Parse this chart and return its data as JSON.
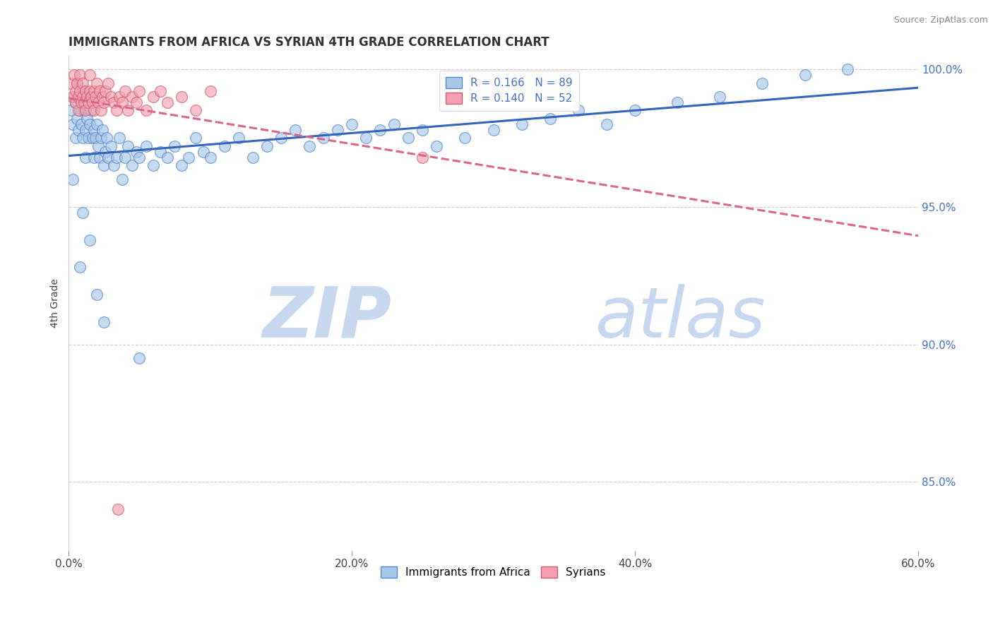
{
  "title": "IMMIGRANTS FROM AFRICA VS SYRIAN 4TH GRADE CORRELATION CHART",
  "source_text": "Source: ZipAtlas.com",
  "ylabel": "4th Grade",
  "xlim": [
    0.0,
    0.6
  ],
  "ylim": [
    0.825,
    1.005
  ],
  "xtick_labels": [
    "0.0%",
    "20.0%",
    "40.0%",
    "60.0%"
  ],
  "xtick_values": [
    0.0,
    0.2,
    0.4,
    0.6
  ],
  "ytick_labels_right": [
    "100.0%",
    "95.0%",
    "90.0%",
    "85.0%"
  ],
  "ytick_values_right": [
    1.0,
    0.95,
    0.9,
    0.85
  ],
  "R_africa": 0.166,
  "N_africa": 89,
  "R_syrian": 0.14,
  "N_syrian": 52,
  "color_africa": "#a8c8e8",
  "color_syrian": "#f4a0b0",
  "edge_africa": "#5588cc",
  "edge_syrian": "#cc6070",
  "trendline_africa": "#3366bb",
  "trendline_syrian": "#dd6688",
  "trendline_syrian_style": "--",
  "watermark_zip": "ZIP",
  "watermark_atlas": "atlas",
  "watermark_color_zip": "#c8d8ee",
  "watermark_color_atlas": "#c8d8ee",
  "legend_label_africa": "Immigrants from Africa",
  "legend_label_syrian": "Syrians",
  "africa_x": [
    0.002,
    0.003,
    0.004,
    0.005,
    0.005,
    0.006,
    0.006,
    0.007,
    0.008,
    0.008,
    0.009,
    0.01,
    0.01,
    0.011,
    0.012,
    0.012,
    0.013,
    0.014,
    0.015,
    0.015,
    0.016,
    0.017,
    0.018,
    0.018,
    0.019,
    0.02,
    0.021,
    0.022,
    0.023,
    0.024,
    0.025,
    0.026,
    0.027,
    0.028,
    0.03,
    0.032,
    0.034,
    0.036,
    0.038,
    0.04,
    0.042,
    0.045,
    0.048,
    0.05,
    0.055,
    0.06,
    0.065,
    0.07,
    0.075,
    0.08,
    0.085,
    0.09,
    0.095,
    0.1,
    0.11,
    0.12,
    0.13,
    0.14,
    0.15,
    0.16,
    0.17,
    0.18,
    0.19,
    0.2,
    0.21,
    0.22,
    0.23,
    0.24,
    0.25,
    0.26,
    0.28,
    0.3,
    0.32,
    0.34,
    0.36,
    0.38,
    0.4,
    0.43,
    0.46,
    0.49,
    0.52,
    0.55,
    0.003,
    0.01,
    0.015,
    0.008,
    0.02,
    0.025,
    0.05
  ],
  "africa_y": [
    0.985,
    0.98,
    0.99,
    0.988,
    0.975,
    0.982,
    0.995,
    0.978,
    0.985,
    0.99,
    0.98,
    0.975,
    0.992,
    0.985,
    0.978,
    0.968,
    0.982,
    0.975,
    0.98,
    0.99,
    0.985,
    0.975,
    0.978,
    0.968,
    0.975,
    0.98,
    0.972,
    0.968,
    0.975,
    0.978,
    0.965,
    0.97,
    0.975,
    0.968,
    0.972,
    0.965,
    0.968,
    0.975,
    0.96,
    0.968,
    0.972,
    0.965,
    0.97,
    0.968,
    0.972,
    0.965,
    0.97,
    0.968,
    0.972,
    0.965,
    0.968,
    0.975,
    0.97,
    0.968,
    0.972,
    0.975,
    0.968,
    0.972,
    0.975,
    0.978,
    0.972,
    0.975,
    0.978,
    0.98,
    0.975,
    0.978,
    0.98,
    0.975,
    0.978,
    0.972,
    0.975,
    0.978,
    0.98,
    0.982,
    0.985,
    0.98,
    0.985,
    0.988,
    0.99,
    0.995,
    0.998,
    1.0,
    0.96,
    0.948,
    0.938,
    0.928,
    0.918,
    0.908,
    0.895
  ],
  "syrian_x": [
    0.002,
    0.003,
    0.004,
    0.005,
    0.005,
    0.006,
    0.007,
    0.007,
    0.008,
    0.008,
    0.009,
    0.01,
    0.01,
    0.011,
    0.012,
    0.012,
    0.013,
    0.014,
    0.015,
    0.015,
    0.016,
    0.017,
    0.018,
    0.018,
    0.019,
    0.02,
    0.021,
    0.022,
    0.023,
    0.024,
    0.025,
    0.026,
    0.028,
    0.03,
    0.032,
    0.034,
    0.036,
    0.038,
    0.04,
    0.042,
    0.045,
    0.048,
    0.05,
    0.055,
    0.06,
    0.065,
    0.07,
    0.08,
    0.09,
    0.1,
    0.035,
    0.25
  ],
  "syrian_y": [
    0.995,
    0.99,
    0.998,
    0.992,
    0.988,
    0.995,
    0.99,
    0.985,
    0.992,
    0.998,
    0.988,
    0.99,
    0.995,
    0.988,
    0.992,
    0.985,
    0.99,
    0.988,
    0.992,
    0.998,
    0.99,
    0.988,
    0.992,
    0.985,
    0.99,
    0.995,
    0.988,
    0.992,
    0.985,
    0.99,
    0.988,
    0.992,
    0.995,
    0.99,
    0.988,
    0.985,
    0.99,
    0.988,
    0.992,
    0.985,
    0.99,
    0.988,
    0.992,
    0.985,
    0.99,
    0.992,
    0.988,
    0.99,
    0.985,
    0.992,
    0.84,
    0.968
  ]
}
